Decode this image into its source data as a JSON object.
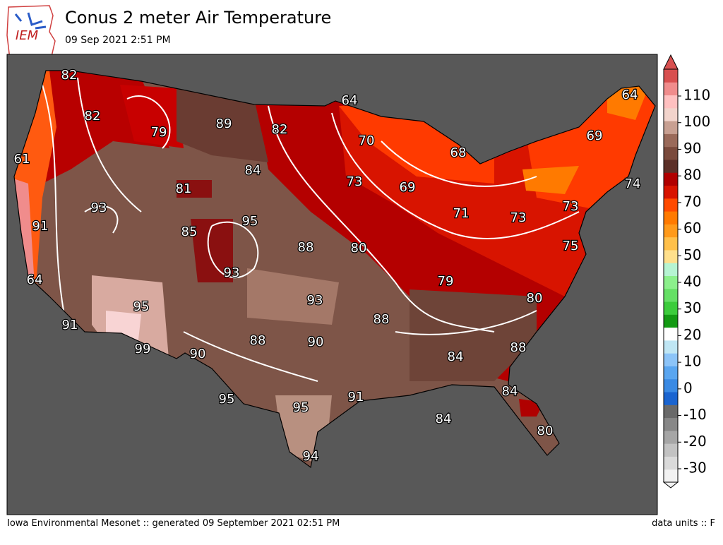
{
  "header": {
    "logo": "IEM",
    "title": "Conus 2 meter Air Temperature",
    "subtitle": "09 Sep 2021 2:51 PM"
  },
  "footer": {
    "left": "Iowa Environmental Mesonet :: generated 09 September 2021 02:51 PM",
    "right": "data units :: F"
  },
  "map": {
    "labels": [
      82,
      82,
      79,
      89,
      64,
      82,
      70,
      68,
      69,
      64,
      61,
      84,
      81,
      73,
      69,
      74,
      93,
      95,
      71,
      73,
      73,
      91,
      85,
      88,
      80,
      75,
      93,
      64,
      79,
      95,
      93,
      80,
      91,
      88,
      99,
      90,
      88,
      90,
      84,
      88,
      95,
      91,
      84,
      95,
      84,
      80,
      94
    ]
  },
  "colorbar": {
    "ticks": [
      -30,
      -20,
      -10,
      0,
      10,
      20,
      30,
      40,
      50,
      60,
      70,
      80,
      90,
      100,
      110
    ],
    "colors": [
      "#f2f2f2",
      "#dadada",
      "#c2c2c2",
      "#a6a6a6",
      "#888888",
      "#6a6a6a",
      "#1a64d0",
      "#3a8ae4",
      "#5aa6f0",
      "#8cc4f8",
      "#bfe6f4",
      "#ffffff",
      "#139a13",
      "#3ccc3c",
      "#66e066",
      "#8cf08c",
      "#b6f4d2",
      "#ffe08c",
      "#ffc04a",
      "#ff9a1a",
      "#ff7a00",
      "#ff4a00",
      "#d81400",
      "#b00000",
      "#5c3028",
      "#7a4a3c",
      "#9a6a5a",
      "#c8a092",
      "#f2d4cc",
      "#ffc0c0",
      "#f08c8c",
      "#d85050"
    ]
  }
}
